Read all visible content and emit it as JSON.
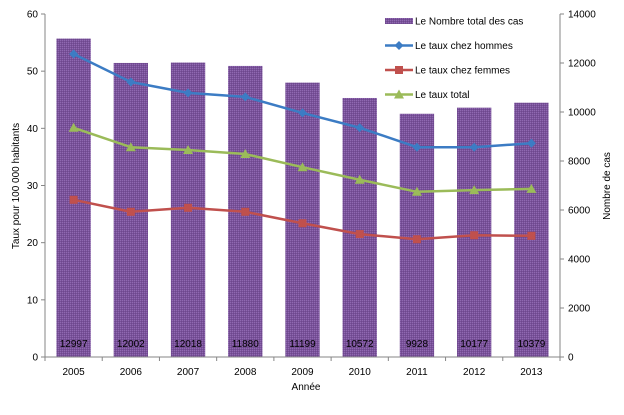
{
  "chart_data": {
    "type": "bar",
    "title": "",
    "xlabel": "Année",
    "ylabel": "Taux pour 100 000 habitants",
    "y2label": "Nombre de cas",
    "categories": [
      "2005",
      "2006",
      "2007",
      "2008",
      "2009",
      "2010",
      "2011",
      "2012",
      "2013"
    ],
    "ylim": [
      0,
      60
    ],
    "y_ticks": [
      0,
      10,
      20,
      30,
      40,
      50,
      60
    ],
    "y2lim": [
      0,
      14000
    ],
    "y2_ticks": [
      0,
      2000,
      4000,
      6000,
      8000,
      10000,
      12000,
      14000
    ],
    "grid": false,
    "legend_position": "top-right",
    "bar_series": {
      "name": "Le Nombre total des cas",
      "axis": "right",
      "color": "#7a4f9a",
      "values": [
        12997,
        12002,
        12018,
        11880,
        11199,
        10572,
        9928,
        10177,
        10379
      ],
      "data_labels": [
        "12997",
        "12002",
        "12018",
        "11880",
        "11199",
        "10572",
        "9928",
        "10177",
        "10379"
      ]
    },
    "series": [
      {
        "name": "Le taux chez hommes",
        "type": "line",
        "axis": "left",
        "color": "#3c7cc4",
        "marker": "diamond",
        "values": [
          53.0,
          48.1,
          46.2,
          45.5,
          42.7,
          40.1,
          36.7,
          36.7,
          37.4
        ]
      },
      {
        "name": "Le taux chez femmes",
        "type": "line",
        "axis": "left",
        "color": "#c0504d",
        "marker": "square",
        "values": [
          27.5,
          25.4,
          26.1,
          25.4,
          23.4,
          21.5,
          20.6,
          21.3,
          21.2
        ]
      },
      {
        "name": "Le taux total",
        "type": "line",
        "axis": "left",
        "color": "#9bbb59",
        "marker": "triangle",
        "values": [
          40.1,
          36.7,
          36.2,
          35.5,
          33.2,
          31.0,
          28.9,
          29.2,
          29.4
        ]
      }
    ]
  }
}
